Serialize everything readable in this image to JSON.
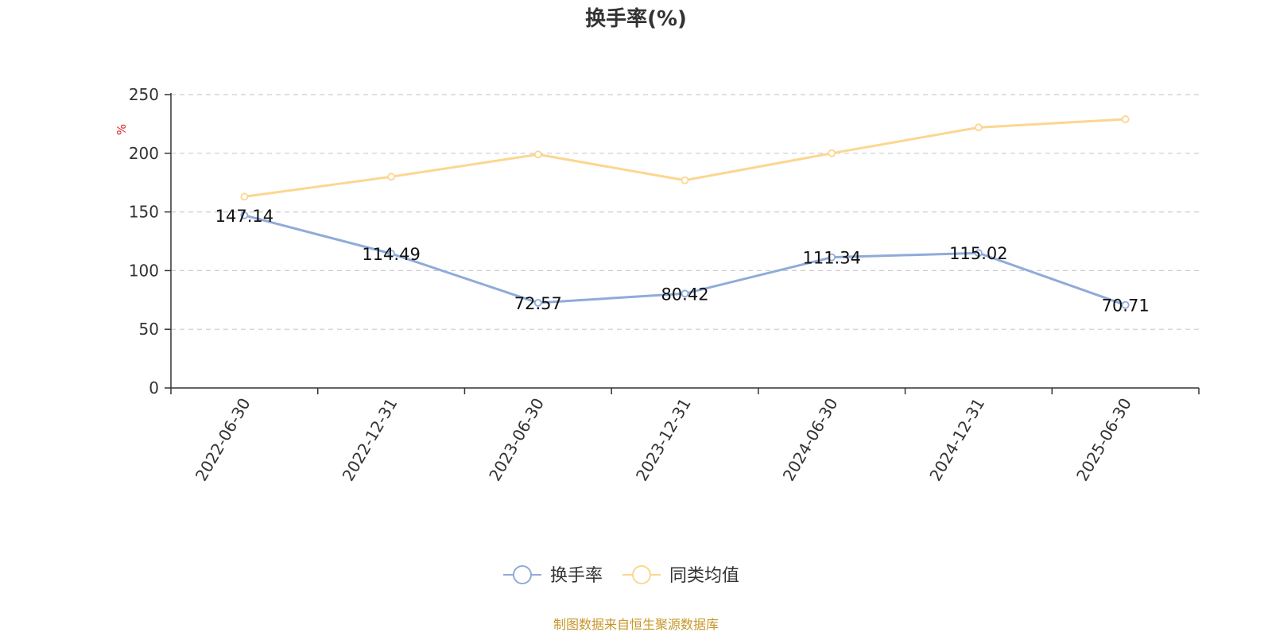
{
  "chart_data": {
    "type": "line",
    "title": "换手率(%)",
    "ylabel": "%",
    "xlabel": "",
    "ylim": [
      0,
      250
    ],
    "yticks": [
      0,
      50,
      100,
      150,
      200,
      250
    ],
    "grid": true,
    "legend_position": "bottom-center",
    "categories": [
      "2022-06-30",
      "2022-12-31",
      "2023-06-30",
      "2023-12-31",
      "2024-06-30",
      "2024-12-31",
      "2025-06-30"
    ],
    "series": [
      {
        "name": "换手率",
        "color": "#8fabd9",
        "values": [
          147.14,
          114.49,
          72.57,
          80.42,
          111.34,
          115.02,
          70.71
        ],
        "labels": [
          "147.14",
          "114.49",
          "72.57",
          "80.42",
          "111.34",
          "115.02",
          "70.71"
        ]
      },
      {
        "name": "同类均值",
        "color": "#fcd690",
        "values": [
          163,
          180,
          199,
          177,
          200,
          222,
          229
        ]
      }
    ]
  },
  "source": "制图数据来自恒生聚源数据库"
}
